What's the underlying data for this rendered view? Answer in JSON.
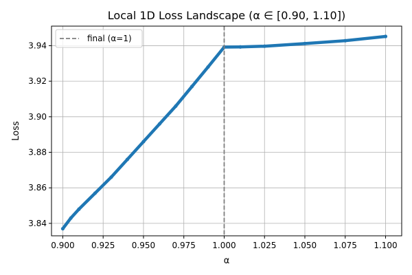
{
  "chart_data": {
    "type": "line",
    "title": "Local 1D Loss Landscape (α ∈ [0.90, 1.10])",
    "xlabel": "α",
    "ylabel": "Loss",
    "xlim": [
      0.893,
      1.11
    ],
    "ylim": [
      3.833,
      3.951
    ],
    "grid": true,
    "legend_placement": "top-left",
    "x_ticks": [
      0.9,
      0.925,
      0.95,
      0.975,
      1.0,
      1.025,
      1.05,
      1.075,
      1.1
    ],
    "x_tick_labels": [
      "0.900",
      "0.925",
      "0.950",
      "0.975",
      "1.000",
      "1.025",
      "1.050",
      "1.075",
      "1.100"
    ],
    "y_ticks": [
      3.84,
      3.86,
      3.88,
      3.9,
      3.92,
      3.94
    ],
    "y_tick_labels": [
      "3.84",
      "3.86",
      "3.88",
      "3.90",
      "3.92",
      "3.94"
    ],
    "series": [
      {
        "color": "#1f77b4",
        "x": [
          0.9,
          0.905,
          0.91,
          0.92,
          0.93,
          0.94,
          0.95,
          0.96,
          0.97,
          0.98,
          0.99,
          1.0,
          1.01,
          1.025,
          1.05,
          1.075,
          1.1
        ],
        "y": [
          3.837,
          3.843,
          3.848,
          3.857,
          3.866,
          3.876,
          3.886,
          3.896,
          3.906,
          3.917,
          3.928,
          3.9392,
          3.9393,
          3.9397,
          3.9412,
          3.9428,
          3.9452
        ]
      }
    ],
    "reference_line": {
      "name": "final (α=1)",
      "x": 1.0,
      "color": "#7f7f7f",
      "style": "dashed"
    }
  }
}
